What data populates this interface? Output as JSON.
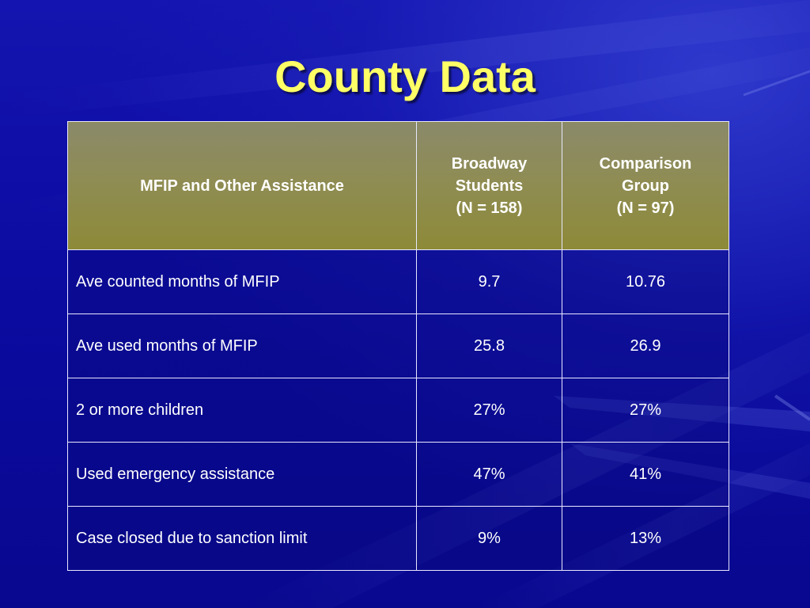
{
  "slide": {
    "title": "County Data"
  },
  "table": {
    "headers": [
      {
        "lines": [
          "MFIP and Other Assistance"
        ]
      },
      {
        "lines": [
          "Broadway",
          "Students",
          "(N = 158)"
        ]
      },
      {
        "lines": [
          "Comparison",
          "Group",
          "(N = 97)"
        ]
      }
    ],
    "rows": [
      {
        "label": "Ave counted months of MFIP",
        "broadway": "9.7",
        "comparison": "10.76"
      },
      {
        "label": "Ave used months of MFIP",
        "broadway": "25.8",
        "comparison": "26.9"
      },
      {
        "label": "2 or more children",
        "broadway": "27%",
        "comparison": "27%"
      },
      {
        "label": "Used emergency assistance",
        "broadway": "47%",
        "comparison": "41%"
      },
      {
        "label": "Case closed due to sanction limit",
        "broadway": "9%",
        "comparison": "13%"
      }
    ]
  },
  "colors": {
    "title": "#ffff66",
    "header_fill": "#8d8a48",
    "background": "#0a0a9a",
    "text": "#ffffff"
  }
}
